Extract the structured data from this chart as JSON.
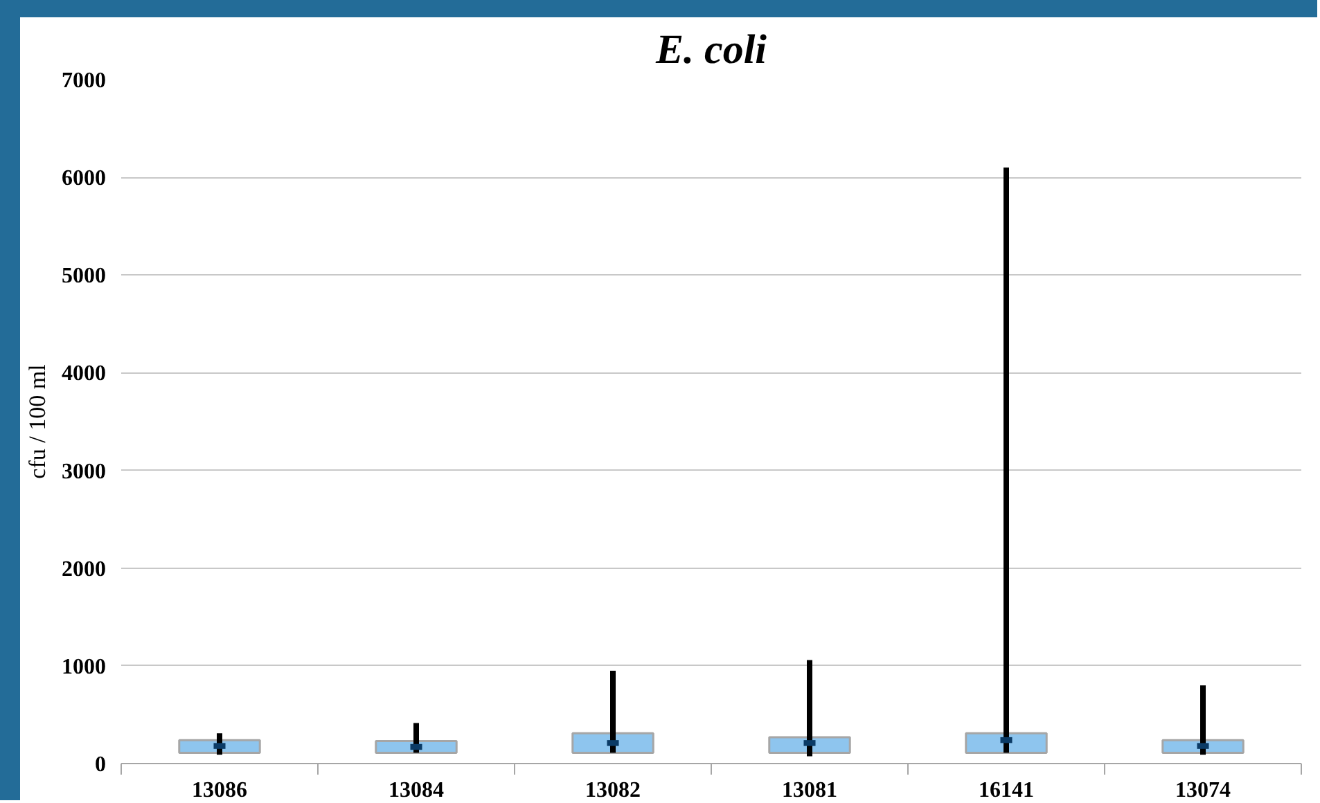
{
  "chart_data": {
    "type": "box",
    "title": "E. coli",
    "ylabel": "cfu / 100 ml",
    "categories": [
      "13086",
      "13084",
      "13082",
      "13081",
      "16141",
      "13074"
    ],
    "boxes": [
      {
        "low": 90,
        "q1": 110,
        "median": 180,
        "q3": 240,
        "high": 310
      },
      {
        "low": 110,
        "q1": 110,
        "median": 170,
        "q3": 230,
        "high": 415
      },
      {
        "low": 110,
        "q1": 110,
        "median": 210,
        "q3": 310,
        "high": 950
      },
      {
        "low": 75,
        "q1": 110,
        "median": 210,
        "q3": 270,
        "high": 1060
      },
      {
        "low": 110,
        "q1": 110,
        "median": 240,
        "q3": 310,
        "high": 6100
      },
      {
        "low": 90,
        "q1": 110,
        "median": 180,
        "q3": 240,
        "high": 800
      }
    ],
    "color": "#8ec5ee",
    "ylim": [
      0,
      7000
    ],
    "yticks": [
      0,
      1000,
      2000,
      3000,
      4000,
      5000,
      6000,
      7000
    ],
    "grid": "y"
  }
}
